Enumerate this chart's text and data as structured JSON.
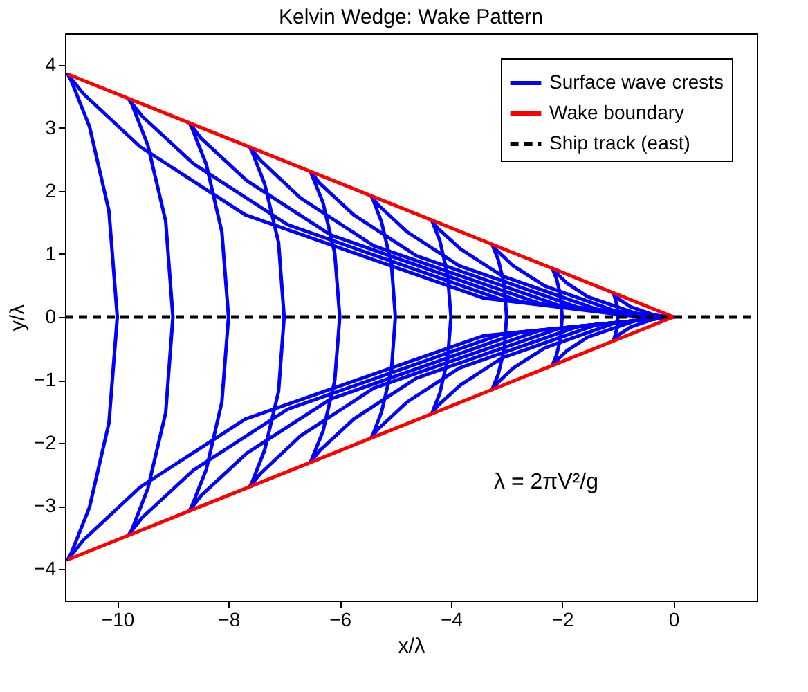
{
  "chart_data": {
    "type": "line",
    "title": "Kelvin Wedge: Wake Pattern",
    "xlabel": "x/λ",
    "ylabel": "y/λ",
    "xlim": [
      -10.94,
      1.5
    ],
    "ylim": [
      -4.5,
      4.5
    ],
    "xticks": [
      -10,
      -8,
      -6,
      -4,
      -2,
      0
    ],
    "yticks": [
      -4,
      -3,
      -2,
      -1,
      0,
      1,
      2,
      3,
      4
    ],
    "grid": false,
    "legend": "top right",
    "annotations": [
      "λ = 2πV²/g"
    ],
    "series": [
      {
        "name": "Surface wave crests",
        "color": "#0000ff",
        "line_style": "solid",
        "x": [
          0,
          -0.34,
          -0.77,
          -0.96,
          -1.06,
          -1.09,
          -1.08,
          -1.05,
          -1.01,
          -1,
          -1.01,
          -1.05,
          -1.08,
          -1.09,
          -1.06,
          -0.96,
          -0.77,
          -0.34,
          -0.07
        ],
        "values": [
          0,
          -0.03,
          -0.16,
          -0.27,
          -0.35,
          -0.38,
          -0.38,
          -0.3,
          -0.17,
          0,
          0.17,
          0.3,
          0.38,
          0.38,
          0.35,
          0.27,
          0.16,
          0.03,
          0
        ]
      },
      {
        "color": "#0000ff",
        "line_style": "solid",
        "x": [
          0,
          -0.68,
          -1.54,
          -1.92,
          -2.12,
          -2.18,
          -2.17,
          -2.1,
          -2.03,
          -2,
          -2.03,
          -2.1,
          -2.17,
          -2.18,
          -2.12,
          -1.92,
          -1.54,
          -0.68,
          -0.14
        ],
        "values": [
          0,
          -0.06,
          -0.32,
          -0.54,
          -0.71,
          -0.77,
          -0.75,
          -0.6,
          -0.34,
          0,
          0.34,
          0.6,
          0.75,
          0.77,
          0.71,
          0.54,
          0.32,
          0.06,
          0
        ]
      },
      {
        "color": "#0000ff",
        "line_style": "solid",
        "x": [
          0,
          -1.03,
          -2.31,
          -2.88,
          -3.18,
          -3.27,
          -3.25,
          -3.15,
          -3.04,
          -3,
          -3.04,
          -3.15,
          -3.25,
          -3.27,
          -3.18,
          -2.88,
          -2.31,
          -1.03,
          -0.21
        ],
        "values": [
          0,
          -0.09,
          -0.49,
          -0.81,
          -1.06,
          -1.15,
          -1.13,
          -0.91,
          -0.51,
          0,
          0.51,
          0.91,
          1.13,
          1.15,
          1.06,
          0.81,
          0.49,
          0.09,
          0
        ]
      },
      {
        "color": "#0000ff",
        "line_style": "solid",
        "x": [
          0,
          -1.37,
          -3.08,
          -3.83,
          -4.24,
          -4.35,
          -4.33,
          -4.2,
          -4.06,
          -4,
          -4.06,
          -4.2,
          -4.33,
          -4.35,
          -4.24,
          -3.83,
          -3.08,
          -1.37,
          -0.28
        ],
        "values": [
          0,
          -0.12,
          -0.65,
          -1.08,
          -1.41,
          -1.54,
          -1.5,
          -1.21,
          -0.67,
          0,
          0.67,
          1.21,
          1.5,
          1.54,
          1.41,
          1.08,
          0.65,
          0.12,
          0
        ]
      },
      {
        "color": "#0000ff",
        "line_style": "solid",
        "x": [
          0,
          -1.71,
          -3.85,
          -4.79,
          -5.3,
          -5.44,
          -5.41,
          -5.25,
          -5.07,
          -5,
          -5.07,
          -5.25,
          -5.41,
          -5.44,
          -5.3,
          -4.79,
          -3.85,
          -1.71,
          -0.35
        ],
        "values": [
          0,
          -0.15,
          -0.81,
          -1.35,
          -1.77,
          -1.92,
          -1.88,
          -1.51,
          -0.84,
          0,
          0.84,
          1.51,
          1.88,
          1.92,
          1.77,
          1.35,
          0.81,
          0.15,
          0.01
        ]
      },
      {
        "color": "#0000ff",
        "line_style": "solid",
        "x": [
          0,
          -2.05,
          -4.62,
          -5.75,
          -6.36,
          -6.53,
          -6.5,
          -6.3,
          -6.09,
          -6,
          -6.09,
          -6.3,
          -6.5,
          -6.53,
          -6.36,
          -5.75,
          -4.62,
          -2.05,
          -0.42
        ],
        "values": [
          0,
          -0.18,
          -0.97,
          -1.62,
          -2.12,
          -2.31,
          -2.25,
          -1.81,
          -1.01,
          0,
          1.01,
          1.81,
          2.25,
          2.31,
          2.12,
          1.62,
          0.97,
          0.18,
          0.01
        ]
      },
      {
        "color": "#0000ff",
        "line_style": "solid",
        "x": [
          0,
          -2.39,
          -5.39,
          -6.71,
          -7.42,
          -7.62,
          -7.58,
          -7.35,
          -7.1,
          -7,
          -7.1,
          -7.35,
          -7.58,
          -7.62,
          -7.42,
          -6.71,
          -5.39,
          -2.39,
          -0.49
        ],
        "values": [
          0,
          -0.21,
          -1.13,
          -1.89,
          -2.48,
          -2.69,
          -2.63,
          -2.11,
          -1.18,
          0,
          1.18,
          2.11,
          2.63,
          2.69,
          2.48,
          1.89,
          1.13,
          0.21,
          0.01
        ]
      },
      {
        "color": "#0000ff",
        "line_style": "solid",
        "x": [
          0,
          -2.74,
          -6.16,
          -7.67,
          -8.49,
          -8.71,
          -8.66,
          -8.4,
          -8.12,
          -8,
          -8.12,
          -8.4,
          -8.66,
          -8.71,
          -8.49,
          -7.67,
          -6.16,
          -2.74,
          -0.56
        ],
        "values": [
          0,
          -0.24,
          -1.3,
          -2.16,
          -2.83,
          -3.08,
          -3.0,
          -2.42,
          -1.35,
          0,
          1.35,
          2.42,
          3.0,
          3.08,
          2.83,
          2.16,
          1.3,
          0.24,
          0.01
        ]
      },
      {
        "color": "#0000ff",
        "line_style": "solid",
        "x": [
          0,
          -3.08,
          -6.93,
          -8.63,
          -9.55,
          -9.8,
          -9.74,
          -9.45,
          -9.13,
          -9,
          -9.13,
          -9.45,
          -9.74,
          -9.8,
          -9.55,
          -8.63,
          -6.93,
          -3.08,
          -0.63
        ],
        "values": [
          0,
          -0.27,
          -1.46,
          -2.43,
          -3.18,
          -3.46,
          -3.38,
          -2.72,
          -1.52,
          0,
          1.52,
          2.72,
          3.38,
          3.46,
          3.18,
          2.43,
          1.46,
          0.27,
          0.01
        ]
      },
      {
        "color": "#0000ff",
        "line_style": "solid",
        "x": [
          0,
          -3.42,
          -7.7,
          -9.59,
          -10.61,
          -10.89,
          -10.83,
          -10.5,
          -10.15,
          -10,
          -10.15,
          -10.5,
          -10.83,
          -10.89,
          -10.61,
          -9.59,
          -7.7,
          -3.42,
          -0.7
        ],
        "values": [
          0,
          -0.3,
          -1.62,
          -2.7,
          -3.54,
          -3.85,
          -3.75,
          -3.02,
          -1.68,
          0,
          1.68,
          3.02,
          3.75,
          3.85,
          3.54,
          2.7,
          1.62,
          0.3,
          0.01
        ]
      },
      {
        "name": "Wake boundary",
        "color": "#ff0000",
        "line_style": "solid",
        "x": [
          -10.89,
          0,
          -10.89
        ],
        "values": [
          3.85,
          0,
          -3.85
        ]
      },
      {
        "name": "Ship track (east)",
        "color": "#000000",
        "line_style": "dashed",
        "x": [
          -10.94,
          1.5
        ],
        "values": [
          0,
          0
        ]
      }
    ]
  }
}
